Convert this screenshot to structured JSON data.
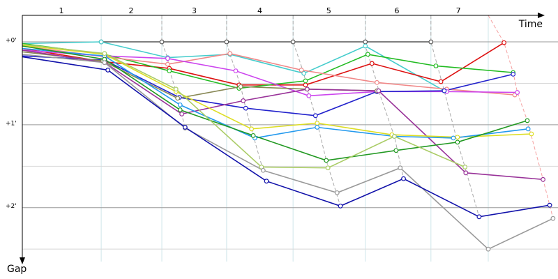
{
  "chart_data": {
    "type": "line",
    "x_label": "Time",
    "y_label": "Gap",
    "xlim": [
      0,
      6.45
    ],
    "ylim": [
      -0.32,
      2.65
    ],
    "y_inverted": true,
    "xticks": [
      {
        "value": 0.47,
        "label": "1"
      },
      {
        "value": 1.31,
        "label": "2"
      },
      {
        "value": 2.07,
        "label": "3"
      },
      {
        "value": 2.86,
        "label": "4"
      },
      {
        "value": 3.69,
        "label": "5"
      },
      {
        "value": 4.51,
        "label": "6"
      },
      {
        "value": 5.25,
        "label": "7"
      }
    ],
    "lap_boundaries": [
      0.95,
      1.68,
      2.46,
      3.26,
      4.13,
      4.92,
      5.61
    ],
    "yticks": [
      {
        "value": 0,
        "label": "+0'"
      },
      {
        "value": 1,
        "label": "+1'"
      },
      {
        "value": 2,
        "label": "+2'"
      }
    ],
    "minor_yticks": [
      0.5,
      1.5,
      2.5
    ],
    "grid": true,
    "series": [
      {
        "color": "#aaaaaa",
        "dash": true,
        "x": [
          1.68,
          1.68,
          1.75,
          1.77,
          1.85,
          1.9,
          1.96
        ],
        "values": [
          -0.32,
          0,
          0.2,
          0.34,
          0.59,
          0.8,
          1.04
        ]
      },
      {
        "color": "#aaaaaa",
        "dash": true,
        "x": [
          2.46,
          2.46,
          2.5,
          2.57,
          2.63,
          2.69,
          2.78,
          2.9
        ],
        "values": [
          -0.32,
          0,
          0.15,
          0.35,
          0.54,
          0.8,
          1.13,
          1.55
        ]
      },
      {
        "color": "#aaaaaa",
        "dash": true,
        "x": [
          3.26,
          3.26,
          3.39,
          3.43,
          3.53,
          3.66,
          3.83
        ],
        "values": [
          -0.32,
          0,
          0.38,
          0.57,
          0.89,
          1.43,
          1.98
        ]
      },
      {
        "color": "#aaaaaa",
        "dash": true,
        "x": [
          4.13,
          4.13,
          4.27,
          4.29,
          4.48,
          4.59
        ],
        "values": [
          -0.32,
          0.05,
          0.49,
          0.59,
          1.14,
          1.65
        ]
      },
      {
        "color": "#aaaaaa",
        "dash": true,
        "x": [
          4.92,
          4.92,
          5.08,
          5.24,
          5.33,
          5.5
        ],
        "values": [
          -0.32,
          0,
          0.59,
          1.21,
          1.51,
          2.11
        ]
      },
      {
        "color": "#f5a0a0",
        "dash": true,
        "x": [
          5.61,
          5.8,
          5.91,
          5.96,
          6.08,
          6.27,
          6.39
        ],
        "values": [
          -0.32,
          0.01,
          0.37,
          0.61,
          0.95,
          1.66,
          2.13
        ]
      },
      {
        "color": "#555555",
        "x": [
          0.95,
          1.68,
          2.46,
          3.26,
          4.13,
          4.92
        ],
        "values": [
          0,
          0,
          0,
          0,
          0,
          0
        ]
      },
      {
        "color": "#44cccc",
        "x": [
          0,
          0.95,
          1.75,
          2.5,
          3.39,
          4.13,
          5.08
        ],
        "values": [
          0.02,
          0,
          0.19,
          0.15,
          0.38,
          0.05,
          0.59
        ]
      },
      {
        "color": "#dd1111",
        "x": [
          0,
          0.99,
          1.77,
          2.61,
          3.41,
          4.21,
          5.04,
          5.8
        ],
        "values": [
          0.08,
          0.24,
          0.32,
          0.52,
          0.52,
          0.26,
          0.48,
          0.01
        ]
      },
      {
        "color": "#22bb22",
        "x": [
          0,
          0.99,
          1.77,
          2.61,
          3.41,
          4.16,
          4.98,
          5.91
        ],
        "values": [
          0.02,
          0.15,
          0.35,
          0.56,
          0.47,
          0.15,
          0.29,
          0.37
        ]
      },
      {
        "color": "#f08888",
        "x": [
          0,
          0.99,
          1.75,
          2.5,
          3.36,
          4.27,
          5.11,
          5.93
        ],
        "values": [
          0.05,
          0.18,
          0.27,
          0.14,
          0.34,
          0.49,
          0.57,
          0.64
        ]
      },
      {
        "color": "#cc44ee",
        "x": [
          0,
          0.99,
          1.75,
          2.57,
          3.45,
          4.27,
          5.11,
          5.96
        ],
        "values": [
          0.1,
          0.17,
          0.2,
          0.35,
          0.65,
          0.6,
          0.6,
          0.61
        ]
      },
      {
        "color": "#2222cc",
        "x": [
          0,
          0.99,
          1.89,
          2.69,
          3.53,
          4.27,
          5.08,
          5.91
        ],
        "values": [
          0.17,
          0.22,
          0.67,
          0.8,
          0.89,
          0.6,
          0.59,
          0.39
        ]
      },
      {
        "color": "#888855",
        "x": [
          0,
          0.97,
          1.87,
          2.63,
          3.43,
          4.27
        ],
        "values": [
          0.12,
          0.23,
          0.68,
          0.54,
          0.57,
          0.59
        ]
      },
      {
        "color": "#993399",
        "x": [
          0,
          0.99,
          1.92,
          2.66,
          3.43,
          4.29,
          5.34,
          6.27
        ],
        "values": [
          0.1,
          0.25,
          0.87,
          0.71,
          0.57,
          0.59,
          1.58,
          1.66
        ]
      },
      {
        "color": "#dddd22",
        "x": [
          0,
          0.99,
          1.85,
          2.76,
          3.55,
          4.45,
          5.24,
          6.13
        ],
        "values": [
          0.04,
          0.15,
          0.6,
          1.05,
          0.98,
          1.12,
          1.15,
          1.11
        ]
      },
      {
        "color": "#2299ee",
        "x": [
          0,
          0.99,
          1.9,
          2.8,
          3.55,
          4.48,
          5.19,
          6.09
        ],
        "values": [
          0.08,
          0.17,
          0.76,
          1.16,
          1.03,
          1.14,
          1.16,
          1.05
        ]
      },
      {
        "color": "#229922",
        "x": [
          0,
          0.99,
          1.9,
          2.78,
          3.66,
          4.5,
          5.24,
          6.08
        ],
        "values": [
          0.05,
          0.21,
          0.82,
          1.13,
          1.43,
          1.31,
          1.21,
          0.95
        ]
      },
      {
        "color": "#aacc66",
        "x": [
          0,
          0.99,
          1.85,
          2.88,
          3.68,
          4.48,
          5.33
        ],
        "values": [
          0.03,
          0.14,
          0.57,
          1.51,
          1.52,
          1.14,
          1.51
        ]
      },
      {
        "color": "#999999",
        "x": [
          0,
          0.99,
          1.96,
          2.9,
          3.79,
          4.55,
          5.61,
          6.39
        ],
        "values": [
          0.15,
          0.25,
          1.04,
          1.55,
          1.82,
          1.52,
          2.5,
          2.13
        ]
      },
      {
        "color": "#1111aa",
        "x": [
          0,
          1.03,
          1.96,
          2.94,
          3.83,
          4.59,
          5.5,
          6.35
        ],
        "values": [
          0.18,
          0.34,
          1.03,
          1.68,
          1.98,
          1.65,
          2.11,
          1.97
        ]
      }
    ]
  }
}
